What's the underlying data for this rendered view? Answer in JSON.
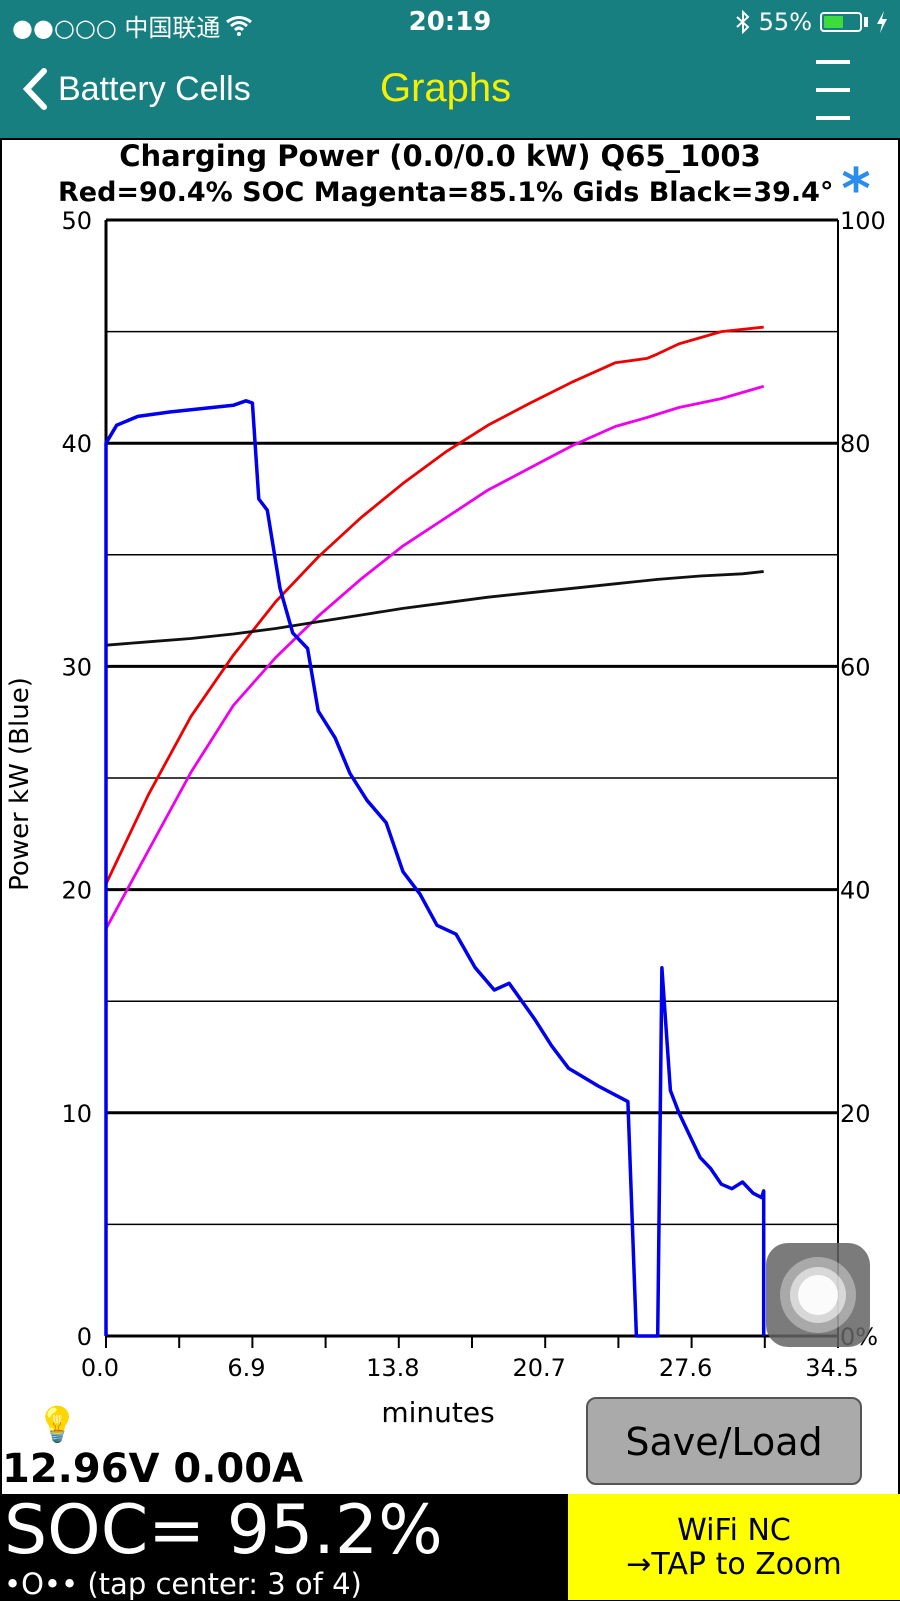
{
  "status_bar": {
    "carrier": "●●○○○ 中国联通",
    "time": "20:19",
    "battery_percent": "55%",
    "battery_level": 0.55,
    "icons": [
      "wifi-icon",
      "bluetooth-icon",
      "battery-icon",
      "charging-bolt-icon"
    ]
  },
  "nav": {
    "back_label": "Battery Cells",
    "title": "Graphs",
    "menu_icon": "menu-icon",
    "title_color": "#f5f000",
    "bar_color": "#177f80"
  },
  "graph": {
    "title_line1": "Charging Power (0.0/0.0 kW)   Q65_1003",
    "title_line2": "Red=90.4% SOC    Magenta=85.1% Gids   Black=39.4°",
    "star": "*",
    "ylabel": "Power  kW  (Blue)",
    "xlabel": "minutes",
    "left_ticks": [
      "50",
      "40",
      "30",
      "20",
      "10",
      "0"
    ],
    "right_ticks": [
      "100",
      "80",
      "60",
      "40",
      "20",
      "0%"
    ],
    "x_ticks": [
      "0.0",
      "6.9",
      "13.8",
      "20.7",
      "27.6",
      "34.5"
    ]
  },
  "chart_data": {
    "type": "line",
    "title": "Charging Power (0.0/0.0 kW)   Q65_1003",
    "xlabel": "minutes",
    "ylabel": "Power  kW  (Blue)",
    "xlim": [
      0,
      34.5
    ],
    "ylim_left": [
      0,
      50
    ],
    "ylim_right": [
      0,
      100
    ],
    "grid": true,
    "series": [
      {
        "name": "Blue",
        "color": "#0000ee",
        "axis": "left",
        "x": [
          0.0,
          0.0,
          0.5,
          1.5,
          3.0,
          5.0,
          6.0,
          6.6,
          6.9,
          7.2,
          7.6,
          8.2,
          8.8,
          9.5,
          10.0,
          10.8,
          11.5,
          12.3,
          13.2,
          14.0,
          14.8,
          15.6,
          16.5,
          17.4,
          18.3,
          19.0,
          19.6,
          20.2,
          21.0,
          21.8,
          22.5,
          23.2,
          24.0,
          24.6,
          25.0,
          25.2,
          26.0,
          26.2,
          26.6,
          27.0,
          27.5,
          28.0,
          28.5,
          29.0,
          29.5,
          30.0,
          30.5,
          30.9,
          31.0,
          31.0
        ],
        "values": [
          0,
          40,
          40.8,
          41.2,
          41.4,
          41.6,
          41.7,
          41.9,
          41.8,
          37.5,
          37.0,
          33.5,
          31.5,
          30.8,
          28.0,
          26.8,
          25.2,
          24.0,
          23.0,
          20.8,
          19.8,
          18.4,
          18.0,
          16.5,
          15.5,
          15.8,
          15.0,
          14.2,
          13.0,
          12.0,
          11.6,
          11.2,
          10.8,
          10.5,
          0,
          0,
          0,
          16.5,
          11.0,
          10.0,
          9.0,
          8.0,
          7.5,
          6.8,
          6.6,
          6.9,
          6.4,
          6.2,
          6.5,
          0
        ],
        "hidden": false
      },
      {
        "name": "Red",
        "color": "#ee0000",
        "axis": "right",
        "x": [
          0.0,
          2.0,
          4.0,
          6.0,
          8.0,
          10.0,
          12.0,
          14.0,
          16.0,
          18.0,
          20.0,
          22.0,
          24.0,
          25.5,
          26.0,
          27.0,
          29.0,
          31.0
        ],
        "values": [
          40.5,
          48.5,
          55.5,
          61.0,
          65.8,
          69.8,
          73.3,
          76.4,
          79.2,
          81.6,
          83.6,
          85.5,
          87.2,
          87.6,
          88.0,
          88.9,
          90.0,
          90.4
        ]
      },
      {
        "name": "Magenta",
        "color": "#ee00ee",
        "axis": "right",
        "x": [
          0.0,
          2.0,
          4.0,
          6.0,
          8.0,
          10.0,
          12.0,
          14.0,
          16.0,
          18.0,
          20.0,
          22.0,
          24.0,
          25.5,
          27.0,
          29.0,
          31.0
        ],
        "values": [
          36.5,
          43.5,
          50.5,
          56.5,
          60.8,
          64.5,
          67.8,
          70.8,
          73.3,
          75.8,
          77.8,
          79.8,
          81.5,
          82.3,
          83.2,
          84.0,
          85.1
        ]
      },
      {
        "name": "Black",
        "color": "#111111",
        "axis": "right",
        "x": [
          0.0,
          2.0,
          4.0,
          6.0,
          8.0,
          10.0,
          12.0,
          14.0,
          16.0,
          18.0,
          20.0,
          22.0,
          24.0,
          26.0,
          28.0,
          30.0,
          31.0
        ],
        "values": [
          61.9,
          62.2,
          62.5,
          62.9,
          63.4,
          64.0,
          64.6,
          65.2,
          65.7,
          66.2,
          66.6,
          67.0,
          67.4,
          67.8,
          68.1,
          68.3,
          68.5
        ]
      }
    ]
  },
  "readout": {
    "bulb_icon": "lightbulb-icon",
    "voltage_current": "12.96V 0.00A"
  },
  "buttons": {
    "save_load": "Save/Load"
  },
  "bottom": {
    "soc": "SOC= 95.2%",
    "pager": "•O•• (tap center: 3 of 4)",
    "wifi_line1": "WiFi NC",
    "wifi_line2": "→TAP to Zoom"
  }
}
